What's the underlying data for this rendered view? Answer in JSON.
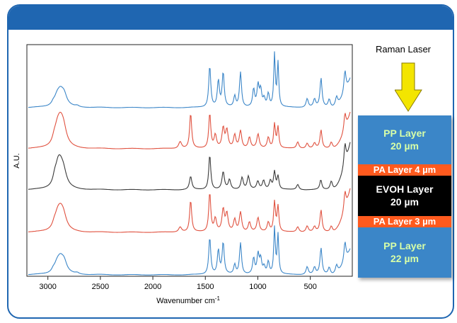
{
  "chart_data": {
    "type": "line",
    "title": "",
    "xlabel": "Wavenumber cm",
    "xlabel_superscript": "-1",
    "ylabel": "A.U.",
    "x_axis_reversed": true,
    "xlim": [
      3200,
      100
    ],
    "x_ticks": [
      3000,
      2500,
      2000,
      1500,
      1000,
      500
    ],
    "grid": false,
    "series": [
      {
        "color": "#3b86c8",
        "offset": 4,
        "peaks": [
          [
            2950,
            0.05,
            0.25
          ],
          [
            2915,
            0.14,
            0.45
          ],
          [
            2882,
            0.34,
            0.6
          ],
          [
            2845,
            0.2,
            0.45
          ],
          [
            2722,
            0.03,
            0.3
          ],
          [
            1458,
            0.95,
            0.17
          ],
          [
            1376,
            0.6,
            0.17
          ],
          [
            1330,
            0.78,
            0.17
          ],
          [
            1220,
            0.25,
            0.17
          ],
          [
            1165,
            0.8,
            0.17
          ],
          [
            1040,
            0.4,
            0.17
          ],
          [
            998,
            0.48,
            0.17
          ],
          [
            973,
            0.38,
            0.17
          ],
          [
            940,
            0.18,
            0.17
          ],
          [
            900,
            0.3,
            0.17
          ],
          [
            841,
            1.2,
            0.13
          ],
          [
            808,
            1.0,
            0.13
          ],
          [
            530,
            0.2,
            0.19
          ],
          [
            460,
            0.18,
            0.19
          ],
          [
            398,
            0.66,
            0.17
          ],
          [
            320,
            0.18,
            0.19
          ],
          [
            250,
            0.2,
            0.19
          ],
          [
            170,
            0.5,
            0.17
          ]
        ],
        "edge": 0.8
      },
      {
        "color": "#e0513f",
        "offset": 3,
        "peaks": [
          [
            2940,
            0.1,
            0.3
          ],
          [
            2910,
            0.3,
            0.5
          ],
          [
            2880,
            0.5,
            0.6
          ],
          [
            2850,
            0.28,
            0.5
          ],
          [
            1740,
            0.16,
            0.25
          ],
          [
            1640,
            0.8,
            0.17
          ],
          [
            1458,
            0.8,
            0.17
          ],
          [
            1405,
            0.3,
            0.2
          ],
          [
            1330,
            0.45,
            0.2
          ],
          [
            1295,
            0.4,
            0.2
          ],
          [
            1220,
            0.3,
            0.2
          ],
          [
            1165,
            0.4,
            0.2
          ],
          [
            1080,
            0.25,
            0.2
          ],
          [
            998,
            0.32,
            0.2
          ],
          [
            900,
            0.25,
            0.2
          ],
          [
            841,
            0.55,
            0.15
          ],
          [
            808,
            0.48,
            0.15
          ],
          [
            620,
            0.15,
            0.2
          ],
          [
            530,
            0.12,
            0.2
          ],
          [
            460,
            0.12,
            0.2
          ],
          [
            398,
            0.42,
            0.17
          ],
          [
            300,
            0.15,
            0.2
          ],
          [
            170,
            0.38,
            0.17
          ]
        ],
        "edge": 1.0
      },
      {
        "color": "#3a3a3a",
        "offset": 2,
        "peaks": [
          [
            2935,
            0.15,
            0.3
          ],
          [
            2905,
            0.3,
            0.45
          ],
          [
            2882,
            0.45,
            0.6
          ],
          [
            2850,
            0.25,
            0.5
          ],
          [
            1640,
            0.3,
            0.2
          ],
          [
            1458,
            0.8,
            0.17
          ],
          [
            1330,
            0.4,
            0.2
          ],
          [
            1270,
            0.22,
            0.2
          ],
          [
            1150,
            0.28,
            0.2
          ],
          [
            1090,
            0.3,
            0.2
          ],
          [
            1000,
            0.18,
            0.2
          ],
          [
            945,
            0.2,
            0.2
          ],
          [
            880,
            0.2,
            0.2
          ],
          [
            841,
            0.4,
            0.16
          ],
          [
            808,
            0.3,
            0.16
          ],
          [
            620,
            0.12,
            0.2
          ],
          [
            400,
            0.22,
            0.17
          ],
          [
            300,
            0.2,
            0.2
          ],
          [
            170,
            0.5,
            0.17
          ]
        ],
        "edge": 1.3
      },
      {
        "color": "#e0513f",
        "offset": 1,
        "peaks": [
          [
            2940,
            0.08,
            0.3
          ],
          [
            2910,
            0.24,
            0.5
          ],
          [
            2880,
            0.4,
            0.6
          ],
          [
            2850,
            0.22,
            0.5
          ],
          [
            1740,
            0.12,
            0.25
          ],
          [
            1640,
            0.72,
            0.17
          ],
          [
            1458,
            0.9,
            0.17
          ],
          [
            1405,
            0.3,
            0.2
          ],
          [
            1330,
            0.5,
            0.2
          ],
          [
            1295,
            0.4,
            0.2
          ],
          [
            1220,
            0.28,
            0.2
          ],
          [
            1165,
            0.45,
            0.2
          ],
          [
            1080,
            0.22,
            0.2
          ],
          [
            998,
            0.32,
            0.2
          ],
          [
            900,
            0.22,
            0.2
          ],
          [
            841,
            0.68,
            0.15
          ],
          [
            808,
            0.58,
            0.15
          ],
          [
            620,
            0.12,
            0.2
          ],
          [
            530,
            0.14,
            0.2
          ],
          [
            460,
            0.12,
            0.2
          ],
          [
            398,
            0.5,
            0.17
          ],
          [
            300,
            0.14,
            0.2
          ],
          [
            170,
            0.42,
            0.17
          ]
        ],
        "edge": 1.2
      },
      {
        "color": "#3b86c8",
        "offset": 0,
        "peaks": [
          [
            2950,
            0.05,
            0.25
          ],
          [
            2915,
            0.14,
            0.45
          ],
          [
            2882,
            0.34,
            0.6
          ],
          [
            2845,
            0.2,
            0.45
          ],
          [
            2722,
            0.03,
            0.3
          ],
          [
            1458,
            0.85,
            0.17
          ],
          [
            1376,
            0.55,
            0.17
          ],
          [
            1330,
            0.72,
            0.17
          ],
          [
            1220,
            0.22,
            0.17
          ],
          [
            1165,
            0.72,
            0.17
          ],
          [
            1040,
            0.36,
            0.17
          ],
          [
            998,
            0.44,
            0.17
          ],
          [
            973,
            0.34,
            0.17
          ],
          [
            940,
            0.16,
            0.17
          ],
          [
            900,
            0.28,
            0.17
          ],
          [
            841,
            1.05,
            0.13
          ],
          [
            808,
            0.9,
            0.13
          ],
          [
            530,
            0.18,
            0.19
          ],
          [
            460,
            0.16,
            0.19
          ],
          [
            398,
            0.6,
            0.17
          ],
          [
            320,
            0.16,
            0.19
          ],
          [
            250,
            0.18,
            0.19
          ],
          [
            170,
            0.45,
            0.17
          ]
        ],
        "edge": 0.7
      }
    ]
  },
  "laser": {
    "label": "Raman Laser",
    "arrow_color": "#f3e500"
  },
  "layers": [
    {
      "line1": "PP Layer",
      "line2": "20  µm",
      "bg": "#3b86c8",
      "color": "#d8ffa8",
      "frac": 0.302,
      "font": 14
    },
    {
      "line1": "PA Layer 4 µm",
      "line2": "",
      "bg": "#ff5a1e",
      "color": "#ffffff",
      "frac": 0.072,
      "font": 13
    },
    {
      "line1": "EVOH Layer",
      "line2": "20  µm",
      "bg": "#000000",
      "color": "#ffffff",
      "frac": 0.25,
      "font": 14
    },
    {
      "line1": "PA Layer 3 µm",
      "line2": "",
      "bg": "#ff5a1e",
      "color": "#ffffff",
      "frac": 0.07,
      "font": 13
    },
    {
      "line1": "PP Layer",
      "line2": "22  µm",
      "bg": "#3b86c8",
      "color": "#d8ffa8",
      "frac": 0.306,
      "font": 14
    }
  ]
}
